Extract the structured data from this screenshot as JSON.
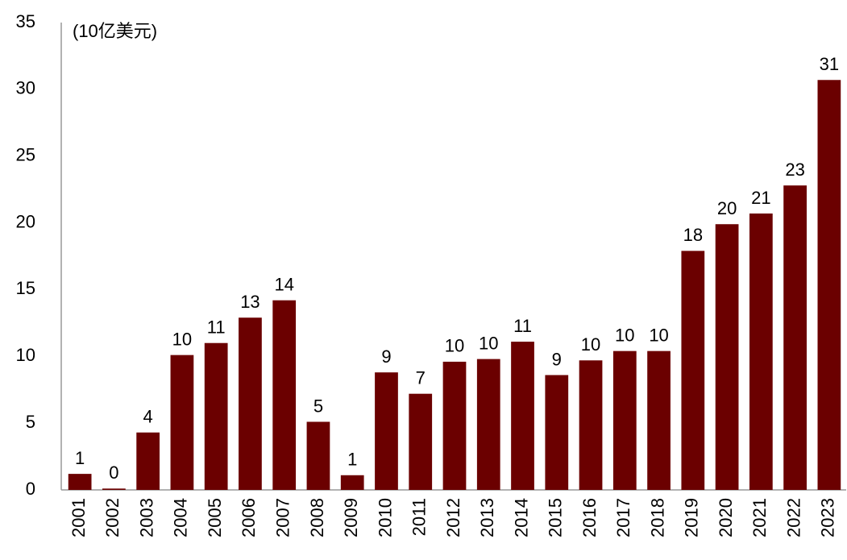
{
  "chart_data": {
    "type": "bar",
    "y_label": "(10亿美元)",
    "categories": [
      "2001",
      "2002",
      "2003",
      "2004",
      "2005",
      "2006",
      "2007",
      "2008",
      "2009",
      "2010",
      "2011",
      "2012",
      "2013",
      "2014",
      "2015",
      "2016",
      "2017",
      "2018",
      "2019",
      "2020",
      "2021",
      "2022",
      "2023"
    ],
    "values": [
      1.2,
      0.1,
      4.3,
      10.1,
      11.0,
      12.9,
      14.2,
      5.1,
      1.1,
      8.8,
      7.2,
      9.6,
      9.8,
      11.1,
      8.6,
      9.7,
      10.4,
      10.4,
      17.9,
      19.9,
      20.7,
      22.8,
      30.7
    ],
    "value_labels": [
      "1",
      "0",
      "4",
      "10",
      "11",
      "13",
      "14",
      "5",
      "1",
      "9",
      "7",
      "10",
      "10",
      "11",
      "9",
      "10",
      "10",
      "10",
      "18",
      "20",
      "21",
      "23",
      "31"
    ],
    "color": "#6b0000",
    "ylim": [
      0,
      35
    ],
    "yticks": [
      0,
      5,
      10,
      15,
      20,
      25,
      30,
      35
    ],
    "grid": false
  }
}
